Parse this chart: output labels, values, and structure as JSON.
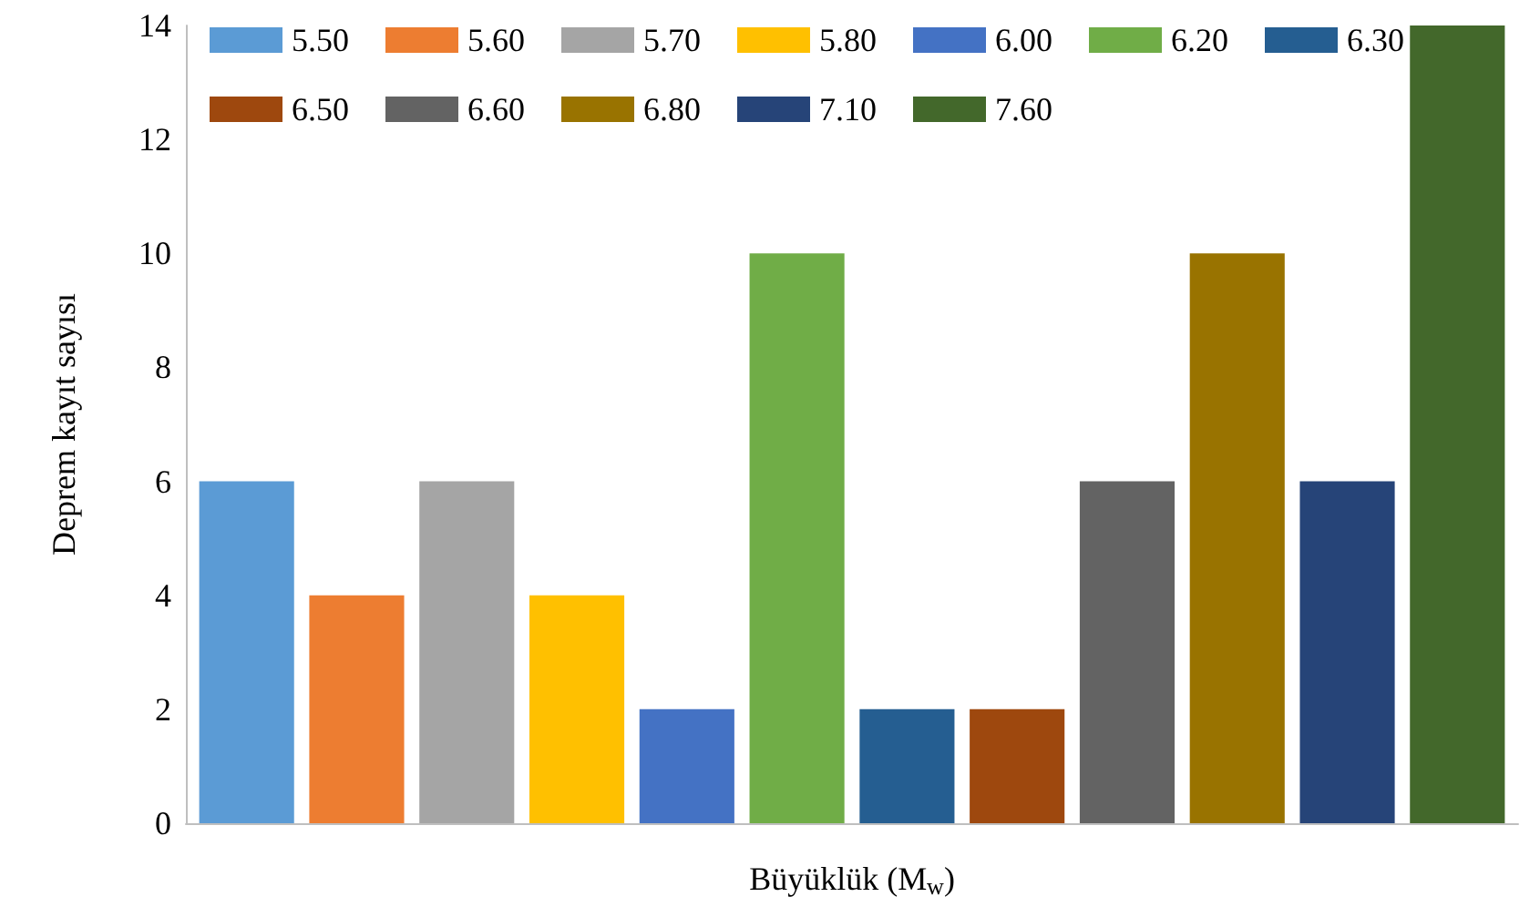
{
  "chart_data": {
    "type": "bar",
    "xlabel": "Büyüklük (M$_{w}$)",
    "ylabel": "Deprem kayıt sayısı",
    "categories": [
      null
    ],
    "ylim": [
      0,
      14
    ],
    "yticks": [
      0,
      2,
      4,
      6,
      8,
      10,
      12,
      14
    ],
    "grid": false,
    "legend": "top",
    "series": [
      {
        "name": "5.50",
        "color": "#5b9bd5",
        "values": [
          6
        ]
      },
      {
        "name": "5.60",
        "color": "#ed7d31",
        "values": [
          4
        ]
      },
      {
        "name": "5.70",
        "color": "#a5a5a5",
        "values": [
          6
        ]
      },
      {
        "name": "5.80",
        "color": "#ffc000",
        "values": [
          4
        ]
      },
      {
        "name": "6.00",
        "color": "#4472c4",
        "values": [
          2
        ]
      },
      {
        "name": "6.20",
        "color": "#70ad47",
        "values": [
          10
        ]
      },
      {
        "name": "6.30",
        "color": "#255e91",
        "values": [
          2
        ]
      },
      {
        "name": "6.50",
        "color": "#9e480e",
        "values": [
          2
        ]
      },
      {
        "name": "6.60",
        "color": "#636363",
        "values": [
          6
        ]
      },
      {
        "name": "6.80",
        "color": "#997300",
        "values": [
          10
        ]
      },
      {
        "name": "7.10",
        "color": "#264478",
        "values": [
          6
        ]
      },
      {
        "name": "7.60",
        "color": "#43682b",
        "values": [
          14
        ]
      }
    ]
  }
}
